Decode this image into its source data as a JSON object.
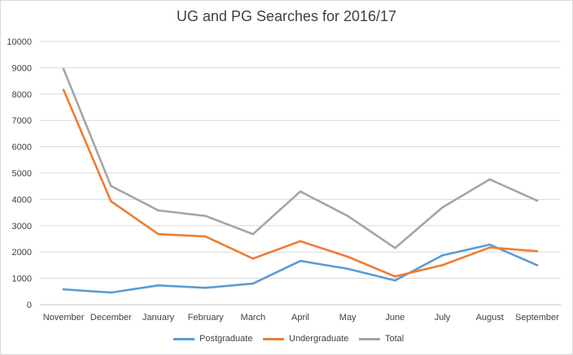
{
  "chart_data": {
    "type": "line",
    "title": "UG and PG Searches for 2016/17",
    "xlabel": "",
    "ylabel": "",
    "categories": [
      "November",
      "December",
      "January",
      "February",
      "March",
      "April",
      "May",
      "June",
      "July",
      "August",
      "September"
    ],
    "ylim": [
      0,
      10000
    ],
    "yticks": [
      0,
      1000,
      2000,
      3000,
      4000,
      5000,
      6000,
      7000,
      8000,
      9000,
      10000
    ],
    "grid": true,
    "legend_position": "bottom",
    "series": [
      {
        "name": "Postgraduate",
        "color": "#5b9bd5",
        "values": [
          580,
          460,
          730,
          640,
          800,
          1660,
          1360,
          920,
          1870,
          2280,
          1500
        ]
      },
      {
        "name": "Undergraduate",
        "color": "#ed7d31",
        "values": [
          8160,
          3930,
          2680,
          2590,
          1750,
          2410,
          1820,
          1070,
          1500,
          2170,
          2030
        ]
      },
      {
        "name": "Total",
        "color": "#a5a5a5",
        "values": [
          8950,
          4510,
          3580,
          3370,
          2680,
          4300,
          3370,
          2150,
          3690,
          4760,
          3950
        ]
      }
    ]
  }
}
